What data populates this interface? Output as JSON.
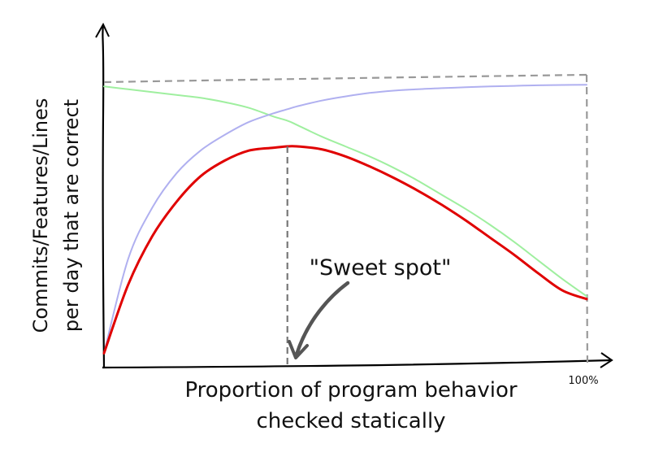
{
  "chart_data": {
    "type": "line",
    "title": "",
    "xlabel_lines": [
      "Proportion of program behavior",
      "checked statically"
    ],
    "ylabel_lines": [
      "Commits/Features/Lines",
      "per day that are correct"
    ],
    "x_tick_label": "100%",
    "xlim": [
      0,
      100
    ],
    "ylim": [
      0,
      100
    ],
    "x": [
      0,
      5,
      10,
      15,
      20,
      25,
      30,
      35,
      38,
      40,
      45,
      50,
      55,
      60,
      65,
      70,
      75,
      80,
      85,
      90,
      95,
      100
    ],
    "series": [
      {
        "name": "green",
        "color": "#9fef9f",
        "values": [
          98.5,
          97.5,
          96.5,
          95.5,
          94.5,
          93,
          91,
          88,
          86.5,
          85,
          81,
          77.5,
          74,
          70,
          65.5,
          60.5,
          55.5,
          50,
          44,
          37.5,
          31,
          25
        ]
      },
      {
        "name": "blue",
        "color": "#b0b0f0",
        "values": [
          5,
          38,
          56,
          68,
          76,
          81.5,
          86,
          89,
          90.5,
          91.5,
          93.5,
          95,
          96.2,
          97,
          97.5,
          97.9,
          98.2,
          98.5,
          98.7,
          98.9,
          99,
          99.1
        ]
      },
      {
        "name": "red",
        "color": "#e00000",
        "values": [
          5,
          29,
          46,
          58,
          67,
          72.5,
          76,
          77,
          77.5,
          77.5,
          76.5,
          74,
          70.5,
          66.5,
          62,
          57,
          51.5,
          45.5,
          39.5,
          33,
          27,
          24
        ]
      }
    ],
    "reference_level": 100,
    "sweet_spot_x": 38,
    "annotation": "\"Sweet spot\""
  }
}
